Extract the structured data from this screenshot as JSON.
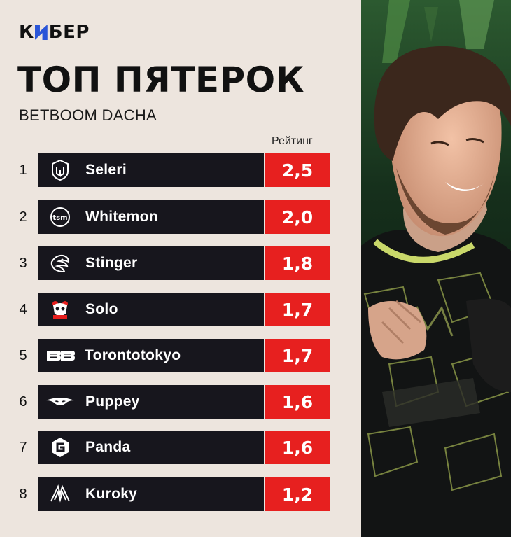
{
  "brand": {
    "logo_left": "К",
    "logo_right": "БЕР"
  },
  "header": {
    "title": "ТОП ПЯТЕРОК",
    "subtitle": "BETBOOM DACHA"
  },
  "table": {
    "rating_label": "Рейтинг",
    "rows": [
      {
        "rank": "1",
        "player": "Seleri",
        "rating": "2,5",
        "team_icon": "gaimin-gladiators-icon"
      },
      {
        "rank": "2",
        "player": "Whitemon",
        "rating": "2,0",
        "team_icon": "tsm-icon"
      },
      {
        "rank": "3",
        "player": "Stinger",
        "rating": "1,8",
        "team_icon": "beastcoast-icon"
      },
      {
        "rank": "4",
        "player": "Solo",
        "rating": "1,7",
        "team_icon": "9pandas-icon"
      },
      {
        "rank": "5",
        "player": "Torontotokyo",
        "rating": "1,7",
        "team_icon": "betboom-icon"
      },
      {
        "rank": "6",
        "player": "Puppey",
        "rating": "1,6",
        "team_icon": "team-secret-icon"
      },
      {
        "rank": "7",
        "player": "Panda",
        "rating": "1,6",
        "team_icon": "evil-geniuses-icon"
      },
      {
        "rank": "8",
        "player": "Kuroky",
        "rating": "1,2",
        "team_icon": "nouns-icon"
      }
    ]
  },
  "colors": {
    "background": "#ede5de",
    "bar": "#17161d",
    "accent_red": "#e7201f",
    "logo_blue": "#2a55d8",
    "jersey_green": "#c9d86a"
  }
}
